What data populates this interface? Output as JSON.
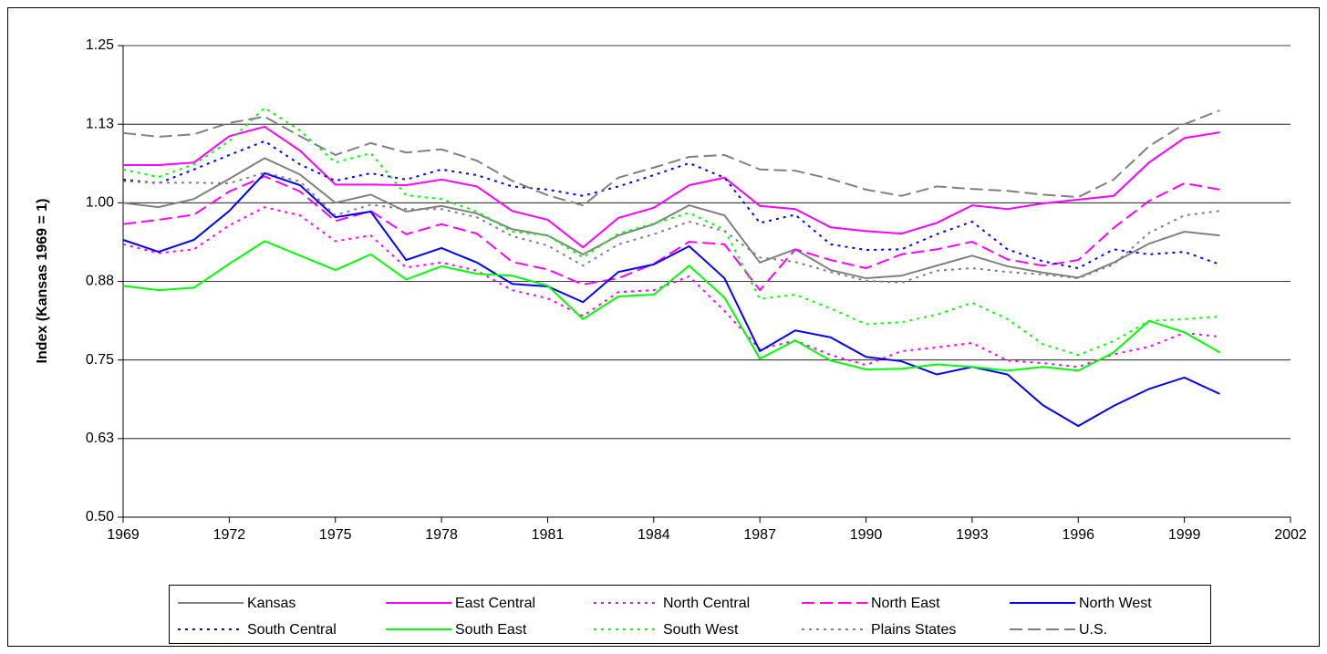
{
  "chart_data": {
    "type": "line",
    "ylabel": "Index (Kansas 1969 = 1)",
    "x": [
      1969,
      1970,
      1971,
      1972,
      1973,
      1974,
      1975,
      1976,
      1977,
      1978,
      1979,
      1980,
      1981,
      1982,
      1983,
      1984,
      1985,
      1986,
      1987,
      1988,
      1989,
      1990,
      1991,
      1992,
      1993,
      1994,
      1995,
      1996,
      1997,
      1998,
      1999,
      2000
    ],
    "xlim": [
      1969,
      2002
    ],
    "xticks": [
      1969,
      1972,
      1975,
      1978,
      1981,
      1984,
      1987,
      1990,
      1993,
      1996,
      1999,
      2002
    ],
    "ylim": [
      0.5,
      1.25
    ],
    "yticks": [
      {
        "value": 0.5,
        "label": "0.50"
      },
      {
        "value": 0.625,
        "label": "0.63"
      },
      0.75,
      {
        "value": 0.875,
        "label": "0.88"
      },
      {
        "value": 1.0,
        "label": "1.00"
      },
      {
        "value": 1.125,
        "label": "1.13"
      },
      1.25
    ],
    "grid": true,
    "legend": "bottom",
    "series": [
      {
        "name": "Kansas",
        "color": "#808080",
        "dash": "solid",
        "values": [
          1.0,
          0.993,
          1.006,
          1.038,
          1.071,
          1.045,
          1.0,
          1.013,
          0.986,
          0.995,
          0.983,
          0.958,
          0.948,
          0.918,
          0.948,
          0.966,
          0.996,
          0.98,
          0.905,
          0.926,
          0.893,
          0.88,
          0.884,
          0.9,
          0.916,
          0.899,
          0.889,
          0.881,
          0.905,
          0.935,
          0.954,
          0.948
        ]
      },
      {
        "name": "East Central",
        "color": "#ff00ff",
        "dash": "solid",
        "values": [
          1.06,
          1.06,
          1.064,
          1.106,
          1.121,
          1.083,
          1.029,
          1.029,
          1.028,
          1.037,
          1.026,
          0.987,
          0.973,
          0.929,
          0.976,
          0.992,
          1.028,
          1.04,
          0.995,
          0.99,
          0.961,
          0.955,
          0.951,
          0.968,
          0.996,
          0.99,
          0.999,
          1.005,
          1.011,
          1.064,
          1.103,
          1.112
        ]
      },
      {
        "name": "North Central",
        "color": "#ff00ff",
        "dash": "dotted",
        "values": [
          0.934,
          0.92,
          0.926,
          0.964,
          0.993,
          0.98,
          0.939,
          0.948,
          0.897,
          0.905,
          0.892,
          0.861,
          0.848,
          0.82,
          0.858,
          0.861,
          0.883,
          0.828,
          0.767,
          0.781,
          0.758,
          0.742,
          0.764,
          0.77,
          0.777,
          0.749,
          0.745,
          0.739,
          0.759,
          0.771,
          0.793,
          0.787
        ]
      },
      {
        "name": "North East",
        "color": "#ff00ff",
        "dash": "dashed",
        "values": [
          0.966,
          0.973,
          0.981,
          1.018,
          1.042,
          1.018,
          0.971,
          0.987,
          0.95,
          0.966,
          0.951,
          0.906,
          0.894,
          0.87,
          0.88,
          0.903,
          0.938,
          0.934,
          0.861,
          0.926,
          0.909,
          0.896,
          0.918,
          0.926,
          0.938,
          0.91,
          0.9,
          0.909,
          0.96,
          1.003,
          1.031,
          1.021
        ]
      },
      {
        "name": "North West",
        "color": "#0000ff",
        "dash": "solid",
        "values": [
          0.941,
          0.922,
          0.941,
          0.987,
          1.047,
          1.028,
          0.977,
          0.986,
          0.909,
          0.928,
          0.905,
          0.871,
          0.867,
          0.842,
          0.89,
          0.902,
          0.931,
          0.88,
          0.764,
          0.797,
          0.786,
          0.755,
          0.748,
          0.727,
          0.739,
          0.727,
          0.678,
          0.645,
          0.677,
          0.704,
          0.722,
          0.696
        ]
      },
      {
        "name": "South Central",
        "color": "#0000ff",
        "dash": "dotted",
        "values": [
          1.037,
          1.031,
          1.053,
          1.076,
          1.098,
          1.061,
          1.035,
          1.047,
          1.037,
          1.053,
          1.044,
          1.026,
          1.021,
          1.011,
          1.026,
          1.044,
          1.063,
          1.04,
          0.968,
          0.981,
          0.934,
          0.925,
          0.926,
          0.95,
          0.97,
          0.926,
          0.907,
          0.896,
          0.926,
          0.918,
          0.922,
          0.902
        ]
      },
      {
        "name": "South East",
        "color": "#00ff00",
        "dash": "solid",
        "values": [
          0.868,
          0.861,
          0.865,
          0.903,
          0.939,
          0.916,
          0.893,
          0.918,
          0.878,
          0.899,
          0.887,
          0.884,
          0.868,
          0.815,
          0.851,
          0.854,
          0.9,
          0.849,
          0.752,
          0.781,
          0.749,
          0.735,
          0.736,
          0.743,
          0.739,
          0.733,
          0.739,
          0.733,
          0.762,
          0.812,
          0.794,
          0.762
        ]
      },
      {
        "name": "South West",
        "color": "#00ff00",
        "dash": "dotted",
        "values": [
          1.053,
          1.041,
          1.061,
          1.098,
          1.151,
          1.115,
          1.064,
          1.079,
          1.012,
          1.006,
          0.986,
          0.954,
          0.948,
          0.913,
          0.951,
          0.967,
          0.984,
          0.957,
          0.847,
          0.854,
          0.832,
          0.807,
          0.81,
          0.822,
          0.841,
          0.815,
          0.775,
          0.758,
          0.78,
          0.812,
          0.815,
          0.819
        ]
      },
      {
        "name": "Plains States",
        "color": "#808080",
        "dash": "dotted",
        "values": [
          1.034,
          1.032,
          1.032,
          1.031,
          1.048,
          1.034,
          0.98,
          0.997,
          0.99,
          0.99,
          0.977,
          0.947,
          0.932,
          0.9,
          0.934,
          0.95,
          0.97,
          0.955,
          0.913,
          0.906,
          0.89,
          0.876,
          0.873,
          0.892,
          0.896,
          0.89,
          0.886,
          0.88,
          0.902,
          0.952,
          0.98,
          0.987
        ]
      },
      {
        "name": "U.S.",
        "color": "#808080",
        "dash": "dashed",
        "values": [
          1.111,
          1.105,
          1.109,
          1.127,
          1.137,
          1.106,
          1.076,
          1.095,
          1.08,
          1.085,
          1.067,
          1.035,
          1.012,
          0.996,
          1.04,
          1.056,
          1.073,
          1.076,
          1.053,
          1.051,
          1.038,
          1.021,
          1.011,
          1.026,
          1.022,
          1.019,
          1.013,
          1.009,
          1.037,
          1.09,
          1.125,
          1.147
        ]
      }
    ]
  }
}
